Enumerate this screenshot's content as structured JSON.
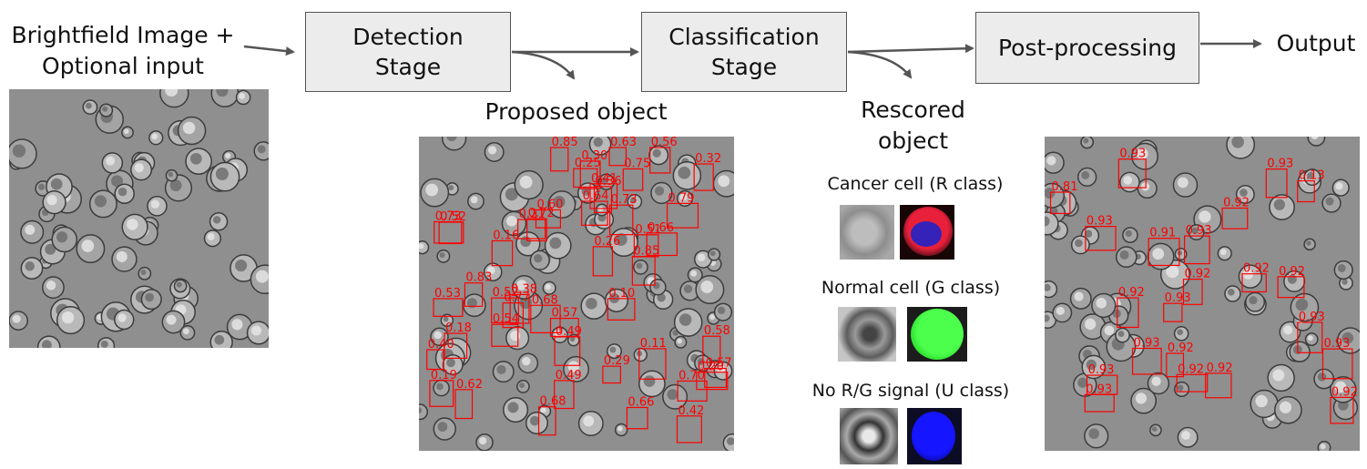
{
  "input": {
    "line1": "Brightfield Image +",
    "line2": "Optional input"
  },
  "stages": {
    "detection": {
      "line1": "Detection",
      "line2": "Stage"
    },
    "classification": {
      "line1": "Classification",
      "line2": "Stage"
    },
    "postprocessing": {
      "label": "Post-processing"
    }
  },
  "output": {
    "label": "Output"
  },
  "proposed": {
    "label": "Proposed object"
  },
  "rescored": {
    "line1": "Rescored",
    "line2": "object"
  },
  "classes": [
    {
      "label": "Cancer cell (R class)",
      "color": "#e8203a"
    },
    {
      "label": "Normal cell (G class)",
      "color": "#22e022"
    },
    {
      "label": "No R/G signal (U class)",
      "color": "#1010ff"
    }
  ],
  "detection_scores": [
    "0.66",
    "0.19",
    "0.57",
    "0.32",
    "0.72",
    "0.62",
    "0.66",
    "0.77",
    "0.51",
    "0.16",
    "0.18",
    "0.56",
    "0.20",
    "0.63",
    "0.40",
    "0.68",
    "0.25",
    "0.70",
    "0.30",
    "0.79",
    "0.52",
    "0.64",
    "0.58",
    "0.68",
    "0.83",
    "0.54",
    "0.42",
    "0.36",
    "0.57",
    "0.85",
    "0.11",
    "0.60",
    "0.53",
    "0.49",
    "0.41",
    "0.73",
    "0.10",
    "0.52",
    "0.29",
    "0.38",
    "0.26",
    "0.49",
    "0.21",
    "0.75",
    "0.73",
    "0.85"
  ],
  "final_scores": [
    "0.93",
    "0.92",
    "0.92",
    "0.93",
    "0.92",
    "0.93",
    "0.93",
    "0.93",
    "0.91",
    "0.93",
    "0.92",
    "0.93",
    "0.81",
    "0.93",
    "0.92",
    "0.92",
    "0.93",
    "0.93",
    "0.13",
    "0.92",
    "0.92",
    "0.92"
  ]
}
